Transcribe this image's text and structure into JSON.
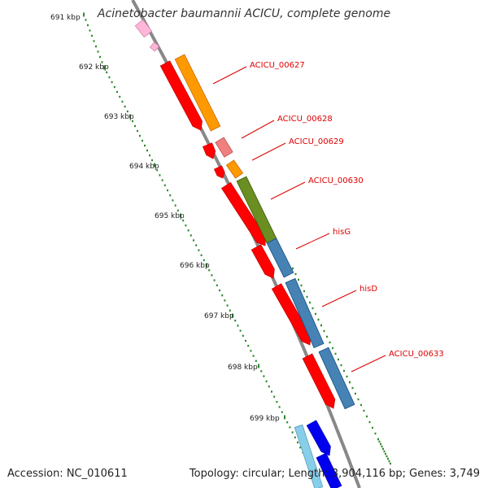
{
  "title": "Acinetobacter baumannii ACICU, complete genome",
  "footer": {
    "accession": "Accession: NC_010611",
    "summary": "Topology: circular; Length: 3,904,116 bp; Genes: 3,749"
  },
  "ticks": [
    {
      "label": "691 kbp"
    },
    {
      "label": "692 kbp"
    },
    {
      "label": "693 kbp"
    },
    {
      "label": "694 kbp"
    },
    {
      "label": "695 kbp"
    },
    {
      "label": "696 kbp"
    },
    {
      "label": "697 kbp"
    },
    {
      "label": "698 kbp"
    },
    {
      "label": "699 kbp"
    }
  ],
  "gene_labels": [
    "ACICU_00627",
    "ACICU_00628",
    "ACICU_00629",
    "ACICU_00630",
    "hisG",
    "hisD",
    "ACICU_00633"
  ],
  "colors": {
    "backbone": "#888888",
    "tick_dots": "#2e8b2e",
    "label_red": "#dd0000",
    "reverse_cds": "#ff0000",
    "orange": "#ff9900",
    "salmon": "#f08080",
    "olive": "#6b8e23",
    "steelblue": "#4682b4",
    "pink": "#ffb6d9",
    "blue": "#0000ee",
    "lightblue": "#87ceeb"
  }
}
